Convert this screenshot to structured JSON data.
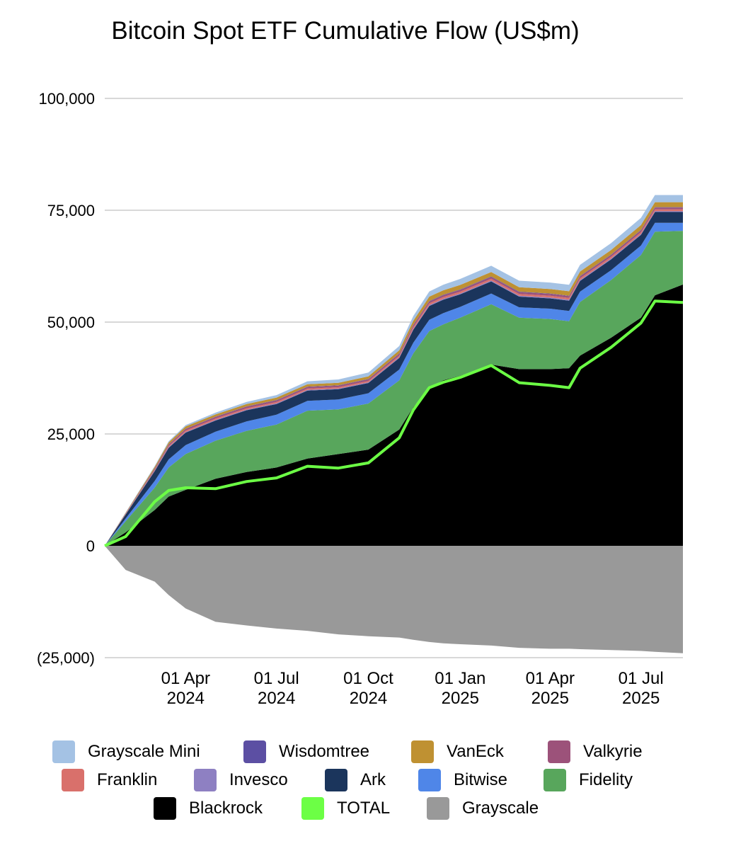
{
  "chart_data": {
    "type": "area",
    "stacked": true,
    "title": "Bitcoin Spot ETF Cumulative Flow (US$m)",
    "xlabel": "",
    "ylabel": "",
    "ylim": [
      -25000,
      100000
    ],
    "grid": true,
    "legend_position": "bottom",
    "y_ticks": [
      "100,000",
      "75,000",
      "50,000",
      "25,000",
      "0",
      "(25,000)"
    ],
    "y_tick_values": [
      100000,
      75000,
      50000,
      25000,
      0,
      -25000
    ],
    "x_ticks": [
      {
        "date": "2024-04-01",
        "line1": "01 Apr",
        "line2": "2024"
      },
      {
        "date": "2024-07-01",
        "line1": "01 Jul",
        "line2": "2024"
      },
      {
        "date": "2024-10-01",
        "line1": "01 Oct",
        "line2": "2024"
      },
      {
        "date": "2025-01-01",
        "line1": "01 Jan",
        "line2": "2025"
      },
      {
        "date": "2025-04-01",
        "line1": "01 Apr",
        "line2": "2025"
      },
      {
        "date": "2025-07-01",
        "line1": "01 Jul",
        "line2": "2025"
      }
    ],
    "x": [
      "2024-01-11",
      "2024-02-01",
      "2024-03-01",
      "2024-03-15",
      "2024-04-01",
      "2024-05-01",
      "2024-06-01",
      "2024-07-01",
      "2024-08-01",
      "2024-09-01",
      "2024-10-01",
      "2024-11-01",
      "2024-11-15",
      "2024-12-01",
      "2024-12-15",
      "2025-01-01",
      "2025-02-01",
      "2025-03-01",
      "2025-04-01",
      "2025-04-20",
      "2025-05-01",
      "2025-06-01",
      "2025-07-01",
      "2025-07-15",
      "2025-08-12"
    ],
    "series": [
      {
        "name": "Blackrock",
        "color": "#000000",
        "values": [
          0,
          3000,
          8000,
          11000,
          12500,
          15000,
          16500,
          17500,
          19500,
          20500,
          21500,
          26000,
          31000,
          35500,
          37000,
          38000,
          40500,
          39500,
          39500,
          39700,
          42500,
          46500,
          51000,
          56000,
          58400
        ]
      },
      {
        "name": "Fidelity",
        "color": "#58a65c",
        "values": [
          0,
          2500,
          5000,
          6500,
          8000,
          8500,
          9200,
          9600,
          10700,
          10000,
          10300,
          11000,
          12000,
          12500,
          12500,
          13000,
          13500,
          11500,
          11200,
          10500,
          12000,
          12900,
          14000,
          14200,
          12000
        ]
      },
      {
        "name": "Bitwise",
        "color": "#4f86e8",
        "values": [
          0,
          600,
          1500,
          1800,
          2000,
          2000,
          2100,
          2200,
          2200,
          2200,
          2300,
          2400,
          2400,
          2500,
          2500,
          2400,
          2400,
          2300,
          2300,
          2300,
          2300,
          2200,
          2100,
          2000,
          1800
        ]
      },
      {
        "name": "Ark",
        "color": "#1b355c",
        "values": [
          0,
          900,
          2200,
          2600,
          2800,
          2500,
          2500,
          2400,
          2300,
          2300,
          2300,
          2600,
          2900,
          3100,
          3000,
          2800,
          2700,
          2400,
          2300,
          2300,
          2400,
          2400,
          2400,
          2400,
          2400
        ]
      },
      {
        "name": "Invesco",
        "color": "#8e80c2",
        "values": [
          0,
          50,
          100,
          150,
          150,
          150,
          150,
          150,
          150,
          150,
          150,
          180,
          200,
          200,
          200,
          200,
          200,
          200,
          200,
          200,
          200,
          200,
          200,
          200,
          200
        ]
      },
      {
        "name": "Franklin",
        "color": "#d9706b",
        "values": [
          0,
          100,
          200,
          250,
          300,
          300,
          300,
          300,
          300,
          300,
          300,
          350,
          400,
          400,
          400,
          400,
          400,
          400,
          400,
          400,
          400,
          400,
          400,
          400,
          400
        ]
      },
      {
        "name": "Valkyrie",
        "color": "#9c527a",
        "values": [
          0,
          100,
          250,
          300,
          350,
          350,
          350,
          350,
          350,
          350,
          350,
          380,
          400,
          400,
          400,
          400,
          400,
          400,
          400,
          400,
          400,
          400,
          400,
          400,
          400
        ]
      },
      {
        "name": "Wisdomtree",
        "color": "#5c4fa3",
        "values": [
          0,
          20,
          50,
          60,
          70,
          70,
          70,
          80,
          80,
          80,
          80,
          90,
          100,
          100,
          100,
          100,
          100,
          100,
          100,
          100,
          100,
          100,
          100,
          100,
          100
        ]
      },
      {
        "name": "VanEck",
        "color": "#bf9132",
        "values": [
          0,
          100,
          350,
          450,
          500,
          500,
          500,
          550,
          550,
          550,
          600,
          700,
          900,
          1000,
          1000,
          1000,
          1000,
          1000,
          1000,
          1000,
          1000,
          1000,
          1100,
          1100,
          1100
        ]
      },
      {
        "name": "Grayscale Mini",
        "color": "#a4c2e4",
        "values": [
          0,
          100,
          200,
          250,
          300,
          400,
          500,
          550,
          650,
          750,
          850,
          950,
          1050,
          1150,
          1250,
          1350,
          1400,
          1450,
          1450,
          1450,
          1500,
          1550,
          1600,
          1600,
          1600
        ]
      },
      {
        "name": "Grayscale",
        "color": "#999999",
        "values": [
          0,
          -5400,
          -8000,
          -11000,
          -14000,
          -17000,
          -17800,
          -18500,
          -19000,
          -19800,
          -20200,
          -20500,
          -21000,
          -21500,
          -21800,
          -22000,
          -22300,
          -22800,
          -23000,
          -23000,
          -23100,
          -23300,
          -23500,
          -23700,
          -24000
        ]
      },
      {
        "name": "TOTAL",
        "color": "#6cff45",
        "type": "line",
        "values": [
          0,
          2070,
          9850,
          12360,
          12970,
          12770,
          14370,
          15180,
          17780,
          17380,
          18530,
          24150,
          30350,
          35350,
          36550,
          37650,
          40300,
          36450,
          35850,
          35350,
          39700,
          44350,
          49800,
          54700,
          54400
        ]
      }
    ],
    "legend": [
      "Grayscale Mini",
      "Wisdomtree",
      "VanEck",
      "Valkyrie",
      "Franklin",
      "Invesco",
      "Ark",
      "Bitwise",
      "Fidelity",
      "Blackrock",
      "TOTAL",
      "Grayscale"
    ]
  }
}
